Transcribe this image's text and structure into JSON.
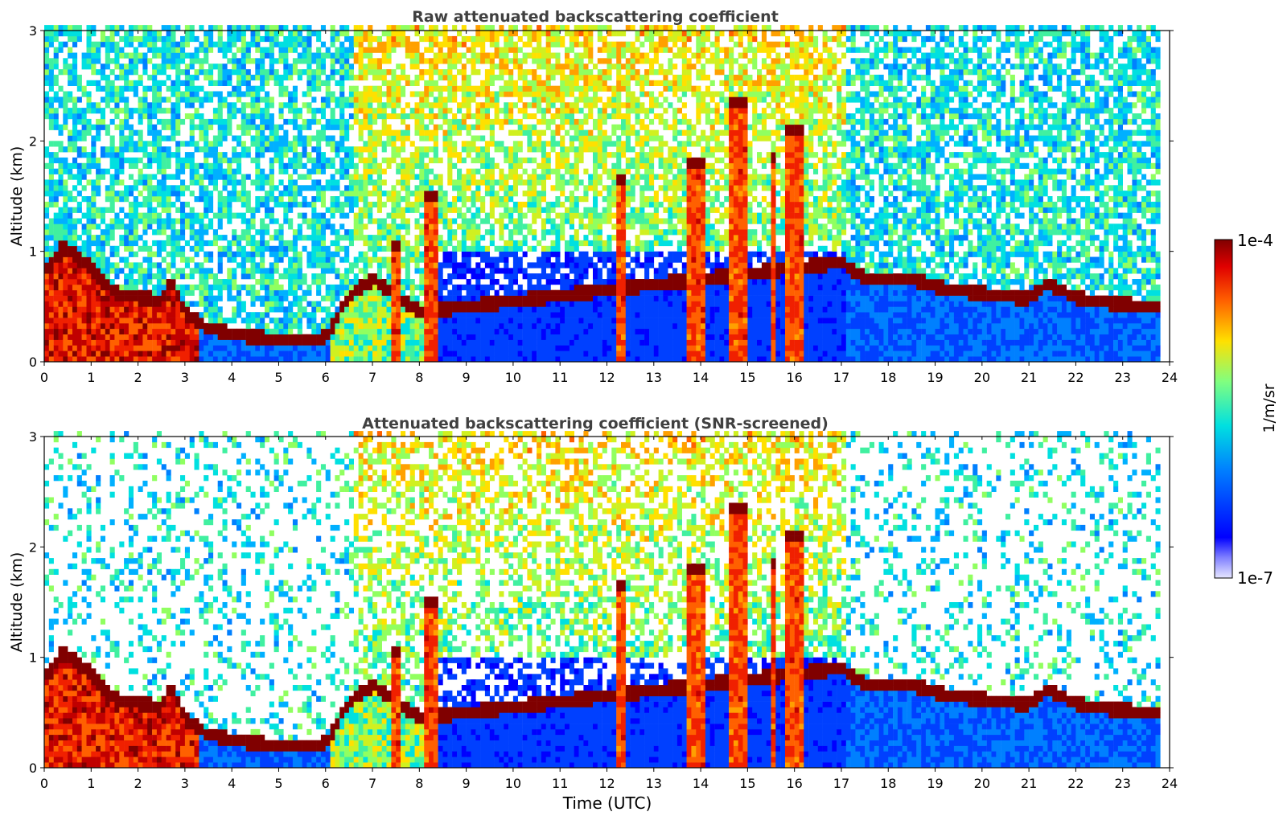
{
  "figure": {
    "xlabel": "Time (UTC)",
    "colorbar": {
      "label": "1/m/sr",
      "max_label": "1e-4",
      "min_label": "1e-7",
      "scale": "log",
      "range": [
        1e-07,
        0.0001
      ],
      "colormap": "jet"
    }
  },
  "chart_data": [
    {
      "type": "heatmap",
      "title": "Raw attenuated backscattering coefficient",
      "xlabel": "",
      "ylabel": "Altitude (km)",
      "xlim": [
        0,
        24
      ],
      "ylim": [
        0,
        3
      ],
      "x_ticks": [
        "0",
        "1",
        "2",
        "3",
        "4",
        "5",
        "6",
        "7",
        "8",
        "9",
        "10",
        "11",
        "12",
        "13",
        "14",
        "15",
        "16",
        "17",
        "18",
        "19",
        "20",
        "21",
        "22",
        "23",
        "24"
      ],
      "y_ticks": [
        "0",
        "1",
        "2",
        "3"
      ],
      "data_end_time": 23.8,
      "boundary_layer_top_km": [
        {
          "t": 0.1,
          "z": 0.85
        },
        {
          "t": 0.4,
          "z": 1.05
        },
        {
          "t": 1.0,
          "z": 0.85
        },
        {
          "t": 1.5,
          "z": 0.62
        },
        {
          "t": 2.5,
          "z": 0.55
        },
        {
          "t": 2.7,
          "z": 0.75
        },
        {
          "t": 3.0,
          "z": 0.45
        },
        {
          "t": 3.5,
          "z": 0.3
        },
        {
          "t": 4.5,
          "z": 0.22
        },
        {
          "t": 5.5,
          "z": 0.2
        },
        {
          "t": 6.0,
          "z": 0.22
        },
        {
          "t": 6.5,
          "z": 0.6
        },
        {
          "t": 7.0,
          "z": 0.75
        },
        {
          "t": 8.0,
          "z": 0.45
        },
        {
          "t": 17.0,
          "z": 0.9
        },
        {
          "t": 17.5,
          "z": 0.75
        },
        {
          "t": 18.5,
          "z": 0.75
        },
        {
          "t": 19.0,
          "z": 0.68
        },
        {
          "t": 20.0,
          "z": 0.62
        },
        {
          "t": 21.0,
          "z": 0.57
        },
        {
          "t": 21.4,
          "z": 0.72
        },
        {
          "t": 22.0,
          "z": 0.58
        },
        {
          "t": 23.0,
          "z": 0.52
        },
        {
          "t": 23.8,
          "z": 0.5
        }
      ],
      "cloud_columns": [
        {
          "t0": 7.4,
          "t1": 7.55,
          "ztop": 1.0
        },
        {
          "t0": 8.1,
          "t1": 8.35,
          "ztop": 1.45
        },
        {
          "t0": 12.2,
          "t1": 12.35,
          "ztop": 1.6
        },
        {
          "t0": 13.7,
          "t1": 14.1,
          "ztop": 1.75
        },
        {
          "t0": 14.55,
          "t1": 14.95,
          "ztop": 2.3
        },
        {
          "t0": 15.45,
          "t1": 15.55,
          "ztop": 1.8
        },
        {
          "t0": 15.8,
          "t1": 16.2,
          "ztop": 2.05
        }
      ]
    },
    {
      "type": "heatmap",
      "title": "Attenuated backscattering coefficient (SNR-screened)",
      "xlabel": "Time (UTC)",
      "ylabel": "Altitude (km)",
      "xlim": [
        0,
        24
      ],
      "ylim": [
        0,
        3
      ],
      "x_ticks": [
        "0",
        "1",
        "2",
        "3",
        "4",
        "5",
        "6",
        "7",
        "8",
        "9",
        "10",
        "11",
        "12",
        "13",
        "14",
        "15",
        "16",
        "17",
        "18",
        "19",
        "20",
        "21",
        "22",
        "23",
        "24"
      ],
      "y_ticks": [
        "0",
        "1",
        "2",
        "3"
      ],
      "data_end_time": 23.8,
      "screened": true
    }
  ]
}
